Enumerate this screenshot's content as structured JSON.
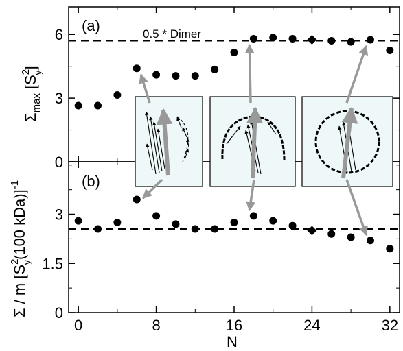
{
  "chart_data": [
    {
      "type": "scatter",
      "panel_label": "(a)",
      "ylabel": {
        "base": "Σ",
        "sub": "max",
        "bracket_open": "[S",
        "sup": "2",
        "sub2": "y",
        "bracket_close": "]"
      },
      "ylim": [
        0,
        7.3
      ],
      "yticks": [
        "0",
        "3",
        "6"
      ],
      "ytick_values": [
        0,
        3,
        6
      ],
      "reference_line": {
        "label": "0.5 * Dimer",
        "y": 5.7,
        "style": "dashed"
      },
      "series": [
        {
          "marker": "circle",
          "points": [
            [
              0,
              2.65
            ],
            [
              2,
              2.65
            ],
            [
              4,
              3.15
            ],
            [
              6,
              4.4
            ],
            [
              8,
              4.1
            ],
            [
              10,
              4.05
            ],
            [
              12,
              4.05
            ],
            [
              14,
              4.35
            ],
            [
              16,
              5.15
            ],
            [
              18,
              5.8
            ],
            [
              20,
              5.85
            ],
            [
              22,
              5.8
            ],
            [
              26,
              5.7
            ],
            [
              28,
              5.65
            ],
            [
              30,
              5.75
            ],
            [
              32,
              5.25
            ]
          ]
        },
        {
          "marker": "diamond",
          "points": [
            [
              24,
              5.75
            ]
          ]
        }
      ]
    },
    {
      "type": "scatter",
      "panel_label": "(b)",
      "xlabel": "N",
      "ylabel": {
        "prefix": "Σ / m [S",
        "sup": "2",
        "sub": "y",
        "rest": "(100 kDa)]",
        "exp": "-1"
      },
      "xlim": [
        -1,
        33
      ],
      "ylim": [
        0,
        4.6
      ],
      "xticks": [
        "0",
        "8",
        "16",
        "24",
        "32"
      ],
      "xtick_values": [
        0,
        8,
        16,
        24,
        32
      ],
      "yticks": [
        "0",
        "1.5",
        "3"
      ],
      "ytick_values": [
        0,
        1.5,
        3
      ],
      "reference_line": {
        "y": 2.55,
        "style": "dashed"
      },
      "series": [
        {
          "marker": "circle",
          "points": [
            [
              0,
              2.8
            ],
            [
              2,
              2.55
            ],
            [
              4,
              2.75
            ],
            [
              6,
              3.45
            ],
            [
              8,
              2.95
            ],
            [
              10,
              2.7
            ],
            [
              12,
              2.55
            ],
            [
              14,
              2.55
            ],
            [
              16,
              2.75
            ],
            [
              18,
              2.95
            ],
            [
              20,
              2.8
            ],
            [
              22,
              2.65
            ],
            [
              26,
              2.4
            ],
            [
              28,
              2.3
            ],
            [
              30,
              2.2
            ],
            [
              32,
              1.95
            ]
          ]
        },
        {
          "marker": "diamond",
          "points": [
            [
              24,
              2.5
            ]
          ]
        }
      ]
    }
  ],
  "insets": [
    {
      "refers_to_N": 6,
      "shape": "two-arcs"
    },
    {
      "refers_to_N": 18,
      "shape": "half-ring"
    },
    {
      "refers_to_N": 30,
      "shape": "ring"
    }
  ],
  "colors": {
    "marker": "#000000",
    "arrow": "#999999",
    "inset_background": "#eef8f8"
  }
}
